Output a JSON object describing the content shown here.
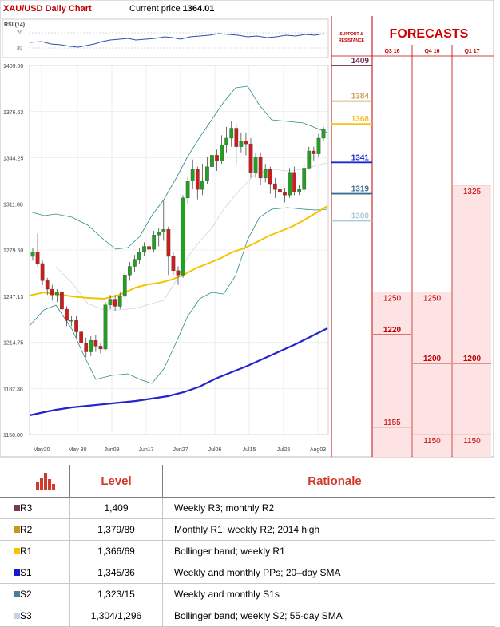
{
  "header": {
    "title": "XAU/USD Daily Chart",
    "price_label": "Current price ",
    "price_value": "1364.01"
  },
  "rsi": {
    "label": "RSI (14)",
    "upper": "70",
    "lower": "30"
  },
  "support_resistance": {
    "header_line1": "SUPPORT &",
    "header_line2": "RESISTANCE",
    "levels": [
      {
        "value": 1409,
        "label": "1409",
        "color": "#6b2b4f"
      },
      {
        "value": 1384,
        "label": "1384",
        "color": "#c8a05c"
      },
      {
        "value": 1368,
        "label": "1368",
        "color": "#f7c21b"
      },
      {
        "value": 1341,
        "label": "1341",
        "color": "#1b2bd0"
      },
      {
        "value": 1319,
        "label": "1319",
        "color": "#3f6d8f"
      },
      {
        "value": 1300,
        "label": "1300",
        "color": "#a8cbd8"
      }
    ]
  },
  "forecasts": {
    "title": "FORECASTS",
    "quarters": [
      "Q3 16",
      "Q4 16",
      "Q1 17"
    ],
    "columns": [
      {
        "quarter": "Q3 16",
        "top": 1250,
        "mid": 1220,
        "low": 1155,
        "labels": [
          "1250",
          "1220",
          "1155"
        ]
      },
      {
        "quarter": "Q4 16",
        "top": 1250,
        "mid": 1200,
        "low": 1150,
        "labels": [
          "1250",
          "1200",
          "1150"
        ]
      },
      {
        "quarter": "Q1 17",
        "top": 1325,
        "mid": 1200,
        "low": 1150,
        "labels": [
          "1325",
          "1200",
          "1150"
        ]
      }
    ]
  },
  "chart_data": {
    "type": "candlestick",
    "title": "XAU/USD Daily Chart",
    "ylim": [
      1150,
      1409
    ],
    "y_ticks": [
      "1409.00",
      "1376.63",
      "1344.25",
      "1311.88",
      "1279.50",
      "1247.13",
      "1214.75",
      "1182.38",
      "1150.00"
    ],
    "x_ticks": [
      "May20",
      "May 30",
      "Jun09",
      "Jun17",
      "Jun27",
      "Jul06",
      "Jul15",
      "Jul25",
      "Aug03"
    ],
    "candles": [
      [
        1275,
        1278,
        1272,
        1281
      ],
      [
        1278,
        1270,
        1268,
        1291
      ],
      [
        1270,
        1258,
        1255,
        1272
      ],
      [
        1258,
        1252,
        1248,
        1260
      ],
      [
        1252,
        1248,
        1244,
        1255
      ],
      [
        1248,
        1250,
        1243,
        1252
      ],
      [
        1250,
        1238,
        1235,
        1252
      ],
      [
        1238,
        1230,
        1226,
        1240
      ],
      [
        1230,
        1230,
        1226,
        1233
      ],
      [
        1230,
        1222,
        1218,
        1233
      ],
      [
        1222,
        1214,
        1210,
        1225
      ],
      [
        1214,
        1208,
        1204,
        1218
      ],
      [
        1208,
        1216,
        1205,
        1219
      ],
      [
        1216,
        1212,
        1208,
        1220
      ],
      [
        1212,
        1210,
        1207,
        1214
      ],
      [
        1210,
        1241,
        1209,
        1243
      ],
      [
        1241,
        1245,
        1238,
        1248
      ],
      [
        1245,
        1240,
        1237,
        1248
      ],
      [
        1240,
        1247,
        1238,
        1250
      ],
      [
        1247,
        1262,
        1245,
        1265
      ],
      [
        1262,
        1268,
        1258,
        1271
      ],
      [
        1268,
        1273,
        1264,
        1276
      ],
      [
        1273,
        1278,
        1270,
        1281
      ],
      [
        1278,
        1282,
        1275,
        1285
      ],
      [
        1282,
        1280,
        1277,
        1288
      ],
      [
        1280,
        1290,
        1278,
        1293
      ],
      [
        1290,
        1292,
        1282,
        1295
      ],
      [
        1292,
        1294,
        1286,
        1314
      ],
      [
        1294,
        1275,
        1262,
        1296
      ],
      [
        1275,
        1265,
        1262,
        1278
      ],
      [
        1265,
        1262,
        1255,
        1268
      ],
      [
        1262,
        1316,
        1260,
        1318
      ],
      [
        1316,
        1328,
        1312,
        1331
      ],
      [
        1328,
        1336,
        1322,
        1343
      ],
      [
        1336,
        1322,
        1315,
        1338
      ],
      [
        1322,
        1328,
        1318,
        1340
      ],
      [
        1328,
        1338,
        1326,
        1345
      ],
      [
        1338,
        1346,
        1335,
        1349
      ],
      [
        1346,
        1342,
        1335,
        1350
      ],
      [
        1342,
        1353,
        1340,
        1360
      ],
      [
        1353,
        1358,
        1348,
        1366
      ],
      [
        1358,
        1365,
        1352,
        1370
      ],
      [
        1365,
        1352,
        1340,
        1368
      ],
      [
        1352,
        1356,
        1348,
        1362
      ],
      [
        1356,
        1354,
        1346,
        1362
      ],
      [
        1354,
        1334,
        1330,
        1358
      ],
      [
        1334,
        1345,
        1330,
        1348
      ],
      [
        1345,
        1330,
        1325,
        1348
      ],
      [
        1330,
        1336,
        1327,
        1340
      ],
      [
        1336,
        1326,
        1319,
        1338
      ],
      [
        1326,
        1322,
        1316,
        1330
      ],
      [
        1322,
        1320,
        1314,
        1327
      ],
      [
        1320,
        1318,
        1313,
        1323
      ],
      [
        1318,
        1334,
        1316,
        1337
      ],
      [
        1334,
        1320,
        1318,
        1338
      ],
      [
        1320,
        1322,
        1318,
        1325
      ],
      [
        1322,
        1337,
        1320,
        1340
      ],
      [
        1337,
        1349,
        1336,
        1352
      ],
      [
        1349,
        1347,
        1342,
        1352
      ],
      [
        1347,
        1358,
        1345,
        1361
      ],
      [
        1358,
        1364,
        1356,
        1366
      ]
    ]
  },
  "table": {
    "headers": {
      "level": "Level",
      "rationale": "Rationale"
    },
    "rows": [
      {
        "name": "R3",
        "color": "#7a3a4e",
        "level": "1,409",
        "rationale": "Weekly R3; monthly R2"
      },
      {
        "name": "R2",
        "color": "#c8961e",
        "level": "1,379/89",
        "rationale": "Monthly R1; weekly R2; 2014 high"
      },
      {
        "name": "R1",
        "color": "#f5c400",
        "level": "1,366/69",
        "rationale": "Bollinger band; weekly R1"
      },
      {
        "name": "S1",
        "color": "#1a1acc",
        "level": "1,345/36",
        "rationale": "Weekly and monthly PPs; 20–day SMA"
      },
      {
        "name": "S2",
        "color": "#4f7c98",
        "level": "1,323/15",
        "rationale": "Weekly and monthly S1s"
      },
      {
        "name": "S3",
        "color": "#c5d3e6",
        "level": "1,304/1,296",
        "rationale": "Bollinger band; weekly S2; 55-day SMA"
      }
    ]
  }
}
